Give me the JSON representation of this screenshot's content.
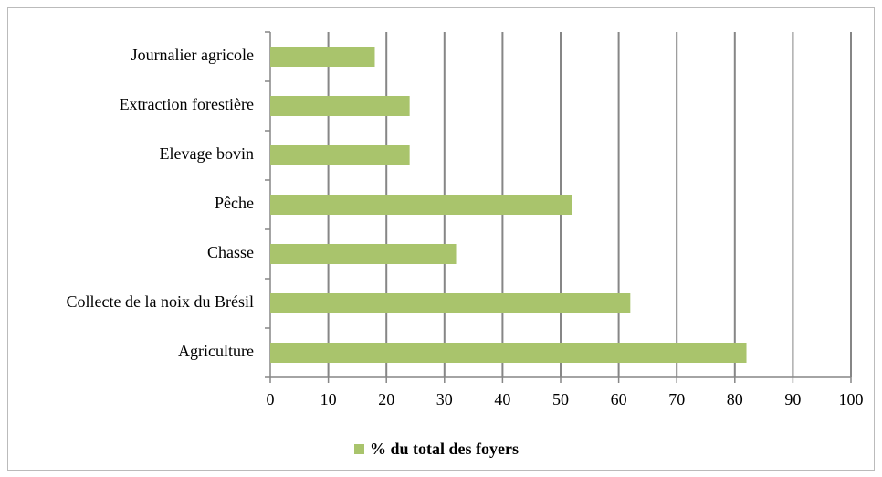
{
  "chart_data": {
    "type": "bar",
    "orientation": "horizontal",
    "categories": [
      "Journalier agricole",
      "Extraction forestière",
      "Elevage bovin",
      "Pêche",
      "Chasse",
      "Collecte de la noix du Brésil",
      "Agriculture"
    ],
    "series": [
      {
        "name": "% du total des foyers",
        "color": "#a9c46c",
        "values": [
          18,
          24,
          24,
          52,
          32,
          62,
          82
        ]
      }
    ],
    "xlim": [
      0,
      100
    ],
    "xticks": [
      0,
      10,
      20,
      30,
      40,
      50,
      60,
      70,
      80,
      90,
      100
    ],
    "grid": true,
    "legend": "bottom"
  }
}
